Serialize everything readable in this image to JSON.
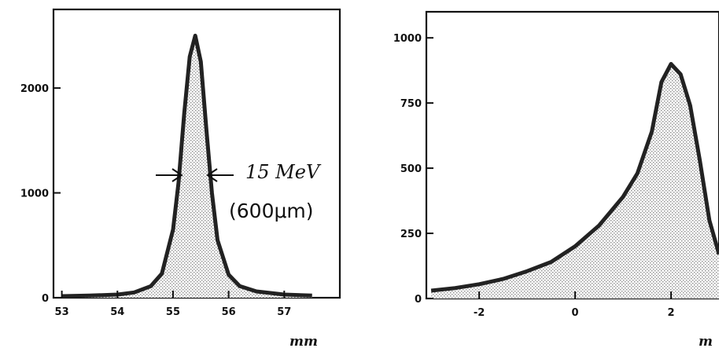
{
  "chart_data": [
    {
      "type": "area",
      "xlabel": "mm",
      "ylabel": "",
      "xlim": [
        52.85,
        58.0
      ],
      "ylim": [
        0,
        2750
      ],
      "x_ticks": [
        "53",
        "54",
        "55",
        "56",
        "57"
      ],
      "y_ticks": [
        "0",
        "1000",
        "2000"
      ],
      "x_tick_values": [
        53,
        54,
        55,
        56,
        57
      ],
      "y_tick_values": [
        0,
        1000,
        2000
      ],
      "annotations": [
        "15 MeV",
        "(600μm)"
      ],
      "peak": {
        "x": 55.4,
        "y": 2500
      },
      "series": [
        {
          "x": [
            53.0,
            53.5,
            54.0,
            54.3,
            54.6,
            54.8,
            55.0,
            55.1,
            55.2,
            55.3,
            55.4,
            55.5,
            55.6,
            55.7,
            55.8,
            56.0,
            56.2,
            56.5,
            57.0,
            57.5
          ],
          "values": [
            15,
            20,
            30,
            50,
            110,
            230,
            650,
            1100,
            1750,
            2300,
            2500,
            2250,
            1600,
            1000,
            550,
            220,
            110,
            60,
            30,
            20
          ]
        }
      ]
    },
    {
      "type": "area",
      "xlabel": "m",
      "ylabel": "",
      "xlim": [
        -3.1,
        3.0
      ],
      "ylim": [
        0,
        1100
      ],
      "x_ticks": [
        "-2",
        "0",
        "2"
      ],
      "y_ticks": [
        "0",
        "250",
        "500",
        "750",
        "1000"
      ],
      "x_tick_values": [
        -2,
        0,
        2
      ],
      "y_tick_values": [
        0,
        250,
        500,
        750,
        1000
      ],
      "series": [
        {
          "x": [
            -3.0,
            -2.5,
            -2.0,
            -1.5,
            -1.0,
            -0.5,
            0.0,
            0.5,
            1.0,
            1.3,
            1.6,
            1.8,
            2.0,
            2.2,
            2.4,
            2.6,
            2.8,
            3.0
          ],
          "values": [
            30,
            40,
            55,
            75,
            105,
            140,
            200,
            280,
            390,
            480,
            640,
            830,
            900,
            860,
            740,
            530,
            300,
            170
          ]
        }
      ]
    }
  ]
}
